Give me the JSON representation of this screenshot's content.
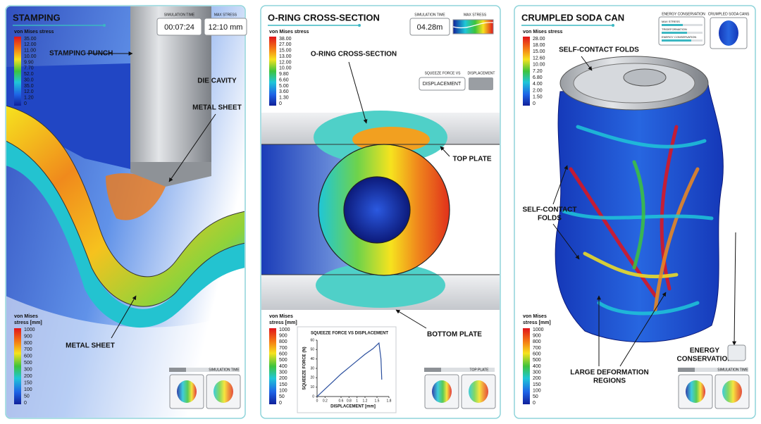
{
  "panels": [
    {
      "title": "STAMPING",
      "sim_time_label": "SIMULATION TIME",
      "sim_time": "00:07:24",
      "max_stress_label": "MAX STRESS",
      "max_stress": "12:10 mm",
      "legend_top": {
        "title": "von Mises stress",
        "labels": [
          "35.00",
          "12.00",
          "11.00",
          "10.00",
          "9.90",
          "7.70",
          "52.0",
          "30.0",
          "35.0",
          "12.0",
          "1.20",
          "0"
        ]
      },
      "legend_bottom": {
        "title_lines": [
          "von Mises",
          "stress [mm]"
        ],
        "labels": [
          "1000",
          "900",
          "800",
          "700",
          "600",
          "500",
          "300",
          "200",
          "150",
          "100",
          "50",
          "0"
        ]
      },
      "annotations": [
        [
          "STAMPING PUNCH"
        ],
        [
          "DIE CAVITY"
        ],
        [
          "METAL SHEET"
        ],
        [
          "METAL SHEET"
        ]
      ],
      "footer_label": "SIMULATION TIME"
    },
    {
      "title": "O-RING CROSS-SECTION",
      "sim_time_label": "SIMULATION TIME",
      "sim_time": "04.28m",
      "max_stress_label": "MAX STRESS",
      "force_widget": {
        "label": "SQUEEZE FORCE VS",
        "tab": "DISPLACEMENT",
        "button": "DISPLACEMENT"
      },
      "legend_top": {
        "title": "von Mises stress",
        "labels": [
          "38.00",
          "27.00",
          "15.00",
          "13.00",
          "12.00",
          "10.00",
          "9.80",
          "6.60",
          "5.00",
          "3.60",
          "1.30",
          "0"
        ]
      },
      "legend_bottom": {
        "title_lines": [
          "von Mises",
          "stress [mm]"
        ],
        "labels": [
          "1000",
          "900",
          "800",
          "700",
          "600",
          "500",
          "400",
          "300",
          "200",
          "150",
          "100",
          "50",
          "0"
        ]
      },
      "annotations": [
        [
          "O-RING CROSS-SECTION"
        ],
        [
          "TOP PLATE"
        ],
        [
          "BOTTOM PLATE"
        ]
      ],
      "footer_label": "TOP PLATE"
    },
    {
      "title": "CRUMPLED SODA CAN",
      "energy_widget": {
        "label": "ENERGY CONSERVATION",
        "items": [
          "MAX STRESS",
          "TRIDEFORMATION",
          "ENERGY CONSERVATION"
        ]
      },
      "thumb_label": "CRUMPLED SODA CANS",
      "legend_top": {
        "title": "von Mises stress",
        "labels": [
          "28.00",
          "18.00",
          "15.00",
          "12.60",
          "10.00",
          "7.20",
          "6.80",
          "4.00",
          "2.00",
          "1.50",
          "0"
        ]
      },
      "legend_bottom": {
        "title_lines": [
          "von Mises",
          "stress [mm]"
        ],
        "labels": [
          "1000",
          "900",
          "800",
          "700",
          "600",
          "500",
          "400",
          "300",
          "200",
          "150",
          "100",
          "50",
          "0"
        ]
      },
      "annotations": [
        [
          "SELF-CONTACT FOLDS"
        ],
        [
          "SELF-CONTACT",
          "FOLDS"
        ],
        [
          "LARGE DEFORMATION",
          "REGIONS"
        ],
        [
          "ENERGY",
          "CONSERVATION"
        ]
      ],
      "footer_label": "SIMULATION TIME"
    }
  ],
  "chart_data": {
    "type": "line",
    "title": "SQUEEZE FORCE VS DISPLACEMENT",
    "xlabel": "DISPLACEMENT [mm]",
    "ylabel": "SQUEEZE FORCE (N)",
    "x": [
      0,
      0.2,
      0.4,
      0.6,
      0.8,
      1.0,
      1.2,
      1.4,
      1.5,
      1.55,
      1.6,
      1.62
    ],
    "values": [
      0,
      8,
      16,
      24,
      31,
      38,
      45,
      51,
      55,
      57,
      40,
      18
    ],
    "color": "#2b4f9e",
    "xlim": [
      0,
      1.8
    ],
    "ylim": [
      0,
      60
    ],
    "xticks": [
      0,
      0.2,
      0.6,
      0.8,
      1,
      1.2,
      1.5,
      1.8
    ],
    "yticks": [
      0,
      10,
      20,
      30,
      40,
      50,
      60
    ]
  }
}
